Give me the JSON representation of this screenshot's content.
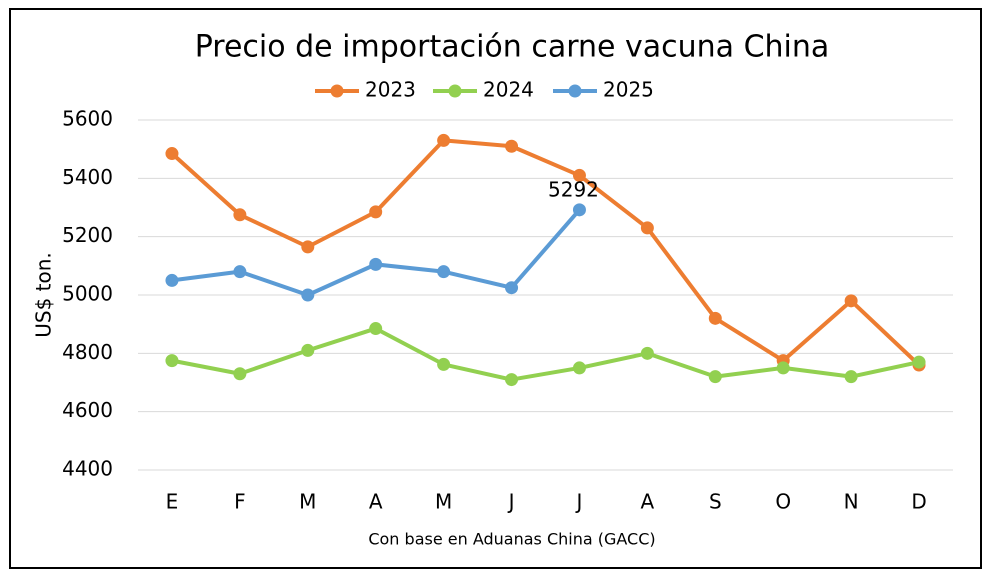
{
  "chart_data": {
    "type": "line",
    "title": "Precio de importación carne vacuna China",
    "x_label": "Con base en Aduanas China (GACC)",
    "y_label": "US$ ton.",
    "categories": [
      "E",
      "F",
      "M",
      "A",
      "M",
      "J",
      "J",
      "A",
      "S",
      "O",
      "N",
      "D"
    ],
    "series": [
      {
        "name": "2023",
        "color": "#ED7D31",
        "values": [
          5485,
          5275,
          5165,
          5285,
          5530,
          5510,
          5410,
          5230,
          4920,
          4775,
          4980,
          4760
        ]
      },
      {
        "name": "2024",
        "color": "#92D050",
        "values": [
          4775,
          4730,
          4810,
          4885,
          4762,
          4710,
          4750,
          4800,
          4720,
          4750,
          4720,
          4770
        ]
      },
      {
        "name": "2025",
        "color": "#5B9BD5",
        "values": [
          5050,
          5080,
          5000,
          5105,
          5080,
          5025,
          5292,
          null,
          null,
          null,
          null,
          null
        ],
        "data_label": "last"
      }
    ],
    "ylim": [
      4400,
      5600
    ],
    "yticks": [
      4400,
      4600,
      4800,
      5000,
      5200,
      5400,
      5600
    ],
    "grid": true,
    "legend": "top"
  }
}
